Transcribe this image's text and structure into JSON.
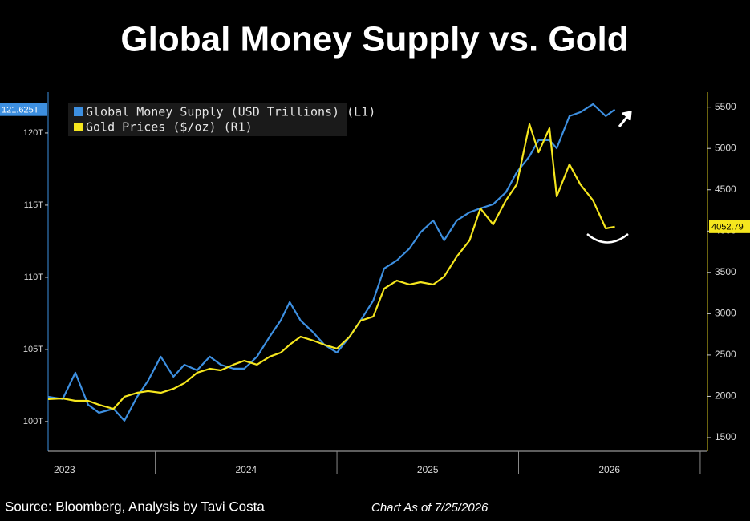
{
  "chart_data": {
    "type": "line",
    "title": "Global Money Supply vs. Gold",
    "source": "Source: Bloomberg, Analysis by Tavi Costa",
    "note": "Chart As of 7/25/2026",
    "legend": "upper left",
    "x": [
      2023.41,
      2023.49,
      2023.56,
      2023.63,
      2023.69,
      2023.77,
      2023.83,
      2023.9,
      2023.96,
      2024.03,
      2024.1,
      2024.16,
      2024.23,
      2024.3,
      2024.36,
      2024.43,
      2024.49,
      2024.56,
      2024.63,
      2024.69,
      2024.74,
      2024.8,
      2024.87,
      2024.93,
      2025.0,
      2025.07,
      2025.13,
      2025.2,
      2025.26,
      2025.33,
      2025.4,
      2025.46,
      2025.53,
      2025.59,
      2025.66,
      2025.73,
      2025.79,
      2025.86,
      2025.93,
      2025.99,
      2026.06,
      2026.11,
      2026.17,
      2026.21,
      2026.28,
      2026.34,
      2026.41,
      2026.48,
      2026.53
    ],
    "xlim": [
      2023.41,
      2027.04
    ],
    "xticks": [
      {
        "value": 2023.5,
        "label": "2023"
      },
      {
        "value": 2024.5,
        "label": "2024"
      },
      {
        "value": 2025.5,
        "label": "2025"
      },
      {
        "value": 2026.5,
        "label": "2026"
      }
    ],
    "ylim": [
      97.94,
      122.83
    ],
    "yticks": [
      {
        "value": 100,
        "label": "100T"
      },
      {
        "value": 105,
        "label": "105T"
      },
      {
        "value": 110,
        "label": "110T"
      },
      {
        "value": 115,
        "label": "115T"
      },
      {
        "value": 120,
        "label": "120T"
      }
    ],
    "y2lim": [
      1335,
      5681
    ],
    "y2ticks": [
      1500,
      2000,
      2500,
      3000,
      3500,
      4000,
      4500,
      5000,
      5500
    ],
    "series": [
      {
        "name": "Global Money Supply (USD Trillions) (L1)",
        "color": "#3d8fe0",
        "axis": "y",
        "values": [
          101.72,
          101.56,
          103.39,
          101.17,
          100.61,
          100.89,
          100.06,
          101.72,
          102.83,
          104.5,
          103.11,
          103.94,
          103.56,
          104.5,
          103.94,
          103.67,
          103.67,
          104.5,
          105.89,
          107,
          108.28,
          107,
          106.17,
          105.33,
          104.78,
          105.89,
          107,
          108.39,
          110.61,
          111.17,
          112,
          113.11,
          113.94,
          112.56,
          113.94,
          114.5,
          114.78,
          115.06,
          115.89,
          117.28,
          118.39,
          119.5,
          119.5,
          118.94,
          121.17,
          121.44,
          122,
          121.17,
          121.625
        ],
        "value_labels": [
          null,
          null,
          null,
          null,
          null,
          null,
          null,
          null,
          null,
          null,
          null,
          null,
          null,
          null,
          null,
          null,
          null,
          null,
          null,
          null,
          null,
          null,
          null,
          null,
          null,
          null,
          null,
          null,
          null,
          null,
          null,
          null,
          null,
          null,
          null,
          null,
          null,
          null,
          null,
          null,
          null,
          null,
          null,
          null,
          null,
          null,
          null,
          null,
          "121.625T"
        ]
      },
      {
        "name": "Gold Prices ($/oz) (R1)",
        "color": "#f5e61e",
        "axis": "y2",
        "values": [
          1966,
          1975,
          1946,
          1946,
          1898,
          1849,
          1995,
          2043,
          2063,
          2043,
          2092,
          2160,
          2286,
          2334,
          2315,
          2383,
          2431,
          2383,
          2480,
          2528,
          2625,
          2722,
          2674,
          2625,
          2577,
          2722,
          2916,
          2965,
          3304,
          3401,
          3353,
          3382,
          3353,
          3450,
          3692,
          3886,
          4274,
          4080,
          4371,
          4565,
          5293,
          4953,
          5244,
          4420,
          4808,
          4565,
          4371,
          4032,
          4052.79
        ],
        "value_labels": [
          null,
          null,
          null,
          null,
          null,
          null,
          null,
          null,
          null,
          null,
          null,
          null,
          null,
          null,
          null,
          null,
          null,
          null,
          null,
          null,
          null,
          null,
          null,
          null,
          null,
          null,
          null,
          null,
          null,
          null,
          null,
          null,
          null,
          null,
          null,
          null,
          null,
          null,
          null,
          null,
          null,
          null,
          null,
          null,
          null,
          null,
          null,
          null,
          "4052.79"
        ]
      }
    ]
  }
}
